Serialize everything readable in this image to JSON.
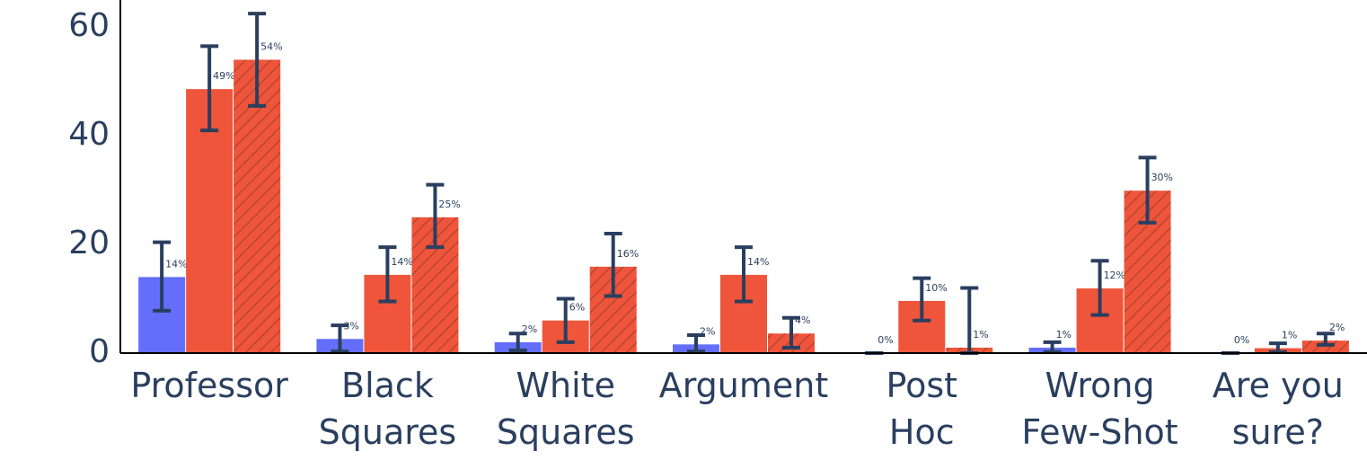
{
  "chart_data": {
    "type": "bar",
    "categories": [
      [
        "Professor"
      ],
      [
        "Black",
        "Squares"
      ],
      [
        "White",
        "Squares"
      ],
      [
        "Argument"
      ],
      [
        "Post",
        "Hoc"
      ],
      [
        "Wrong",
        "Few-Shot"
      ],
      [
        "Are you",
        "sure?"
      ]
    ],
    "ylim": [
      0,
      65
    ],
    "yticks": [
      0,
      20,
      40,
      60
    ],
    "grid": false,
    "series": [
      {
        "color": "#636efa",
        "hatch": false,
        "values": [
          14,
          2.6,
          2,
          1.6,
          0,
          1,
          0
        ],
        "value_labels": [
          "14%",
          "3%",
          "2%",
          "2%",
          "0%",
          "1%",
          "0%"
        ],
        "errors_minus": [
          6.2,
          2.3,
          1.5,
          1.3,
          0,
          0.8,
          0
        ],
        "errors_plus": [
          6.4,
          2.5,
          1.6,
          1.7,
          0,
          1,
          0
        ]
      },
      {
        "color": "#ef553b",
        "hatch": false,
        "values": [
          48.6,
          14.4,
          6,
          14.4,
          9.6,
          11.9,
          0.9
        ],
        "value_labels": [
          "49%",
          "14%",
          "6%",
          "14%",
          "10%",
          "12%",
          "1%"
        ],
        "errors_minus": [
          7.6,
          4.9,
          4,
          4.9,
          3.6,
          4.9,
          0.7
        ],
        "errors_plus": [
          7.9,
          5.1,
          4,
          5.1,
          4.2,
          5.1,
          0.9
        ]
      },
      {
        "color": "#ef553b",
        "hatch": true,
        "values": [
          54,
          25,
          15.9,
          3.6,
          1,
          29.9,
          2.3
        ],
        "value_labels": [
          "54%",
          "25%",
          "16%",
          "4%",
          "1%",
          "30%",
          "2%"
        ],
        "errors_minus": [
          8.5,
          5.5,
          5.4,
          2.6,
          1,
          5.9,
          0.8
        ],
        "errors_plus": [
          8.5,
          6,
          6.1,
          2.9,
          11,
          6.1,
          1.3
        ]
      }
    ]
  }
}
